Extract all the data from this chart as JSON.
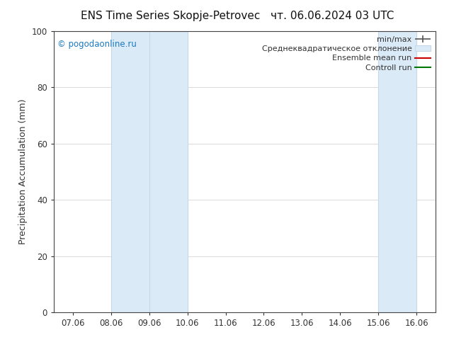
{
  "title_left": "ENS Time Series Skopje-Petrovec",
  "title_right": "чт. 06.06.2024 03 UTC",
  "ylabel": "Precipitation Accumulation (mm)",
  "ylim": [
    0,
    100
  ],
  "yticks": [
    0,
    20,
    40,
    60,
    80,
    100
  ],
  "x_labels": [
    "07.06",
    "08.06",
    "09.06",
    "10.06",
    "11.06",
    "12.06",
    "13.06",
    "14.06",
    "15.06",
    "16.06"
  ],
  "x_positions": [
    0,
    1,
    2,
    3,
    4,
    5,
    6,
    7,
    8,
    9
  ],
  "shaded_bands": [
    {
      "xmin": 1,
      "xmax": 3,
      "color": "#dbeaf7"
    },
    {
      "xmin": 8,
      "xmax": 9,
      "color": "#dbeaf7"
    }
  ],
  "band_vlines": [
    1,
    2,
    3,
    8,
    9
  ],
  "band_edge_color": "#c5d8ea",
  "watermark": "© pogodaonline.ru",
  "watermark_color": "#1a7abf",
  "legend_labels": [
    "min/max",
    "Среднеквадратическое отклонение",
    "Ensemble mean run",
    "Controll run"
  ],
  "legend_line_color": "#555555",
  "legend_patch_face": "#dbeaf7",
  "legend_patch_edge": "#c5d8ea",
  "legend_red": "#cc0000",
  "legend_green": "#007700",
  "background_color": "#ffffff",
  "grid_color": "#cccccc",
  "spine_color": "#444444",
  "tick_color": "#333333",
  "title_fontsize": 11,
  "label_fontsize": 9,
  "tick_fontsize": 8.5,
  "legend_fontsize": 8
}
